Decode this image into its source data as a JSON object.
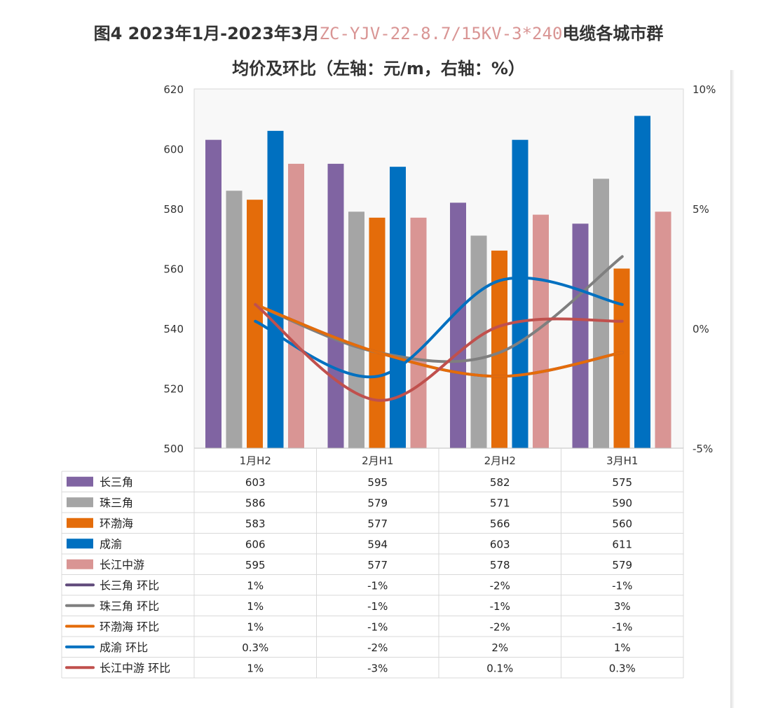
{
  "title": {
    "line1_prefix": "图4 2023年1月-2023年3月",
    "line1_highlight": "ZC-YJV-22-8.7/15KV-3*240",
    "line1_suffix": "电缆各城市群",
    "line2": "均价及环比（左轴：元/m，右轴：%）"
  },
  "chart_data": {
    "type": "bar+line",
    "categories": [
      "1月H2",
      "2月H1",
      "2月H2",
      "3月H1"
    ],
    "left_axis": {
      "range": [
        500,
        620
      ],
      "ticks": [
        "500",
        "520",
        "540",
        "560",
        "580",
        "600",
        "620"
      ]
    },
    "right_axis": {
      "range": [
        -5,
        10
      ],
      "ticks": [
        "-5%",
        "0%",
        "5%",
        "10%"
      ]
    },
    "grid": false,
    "legend": "data-table-below",
    "bar_series": [
      {
        "name": "长三角",
        "color": "#8064a2",
        "values": [
          603,
          595,
          582,
          575
        ],
        "labels": [
          "603",
          "595",
          "582",
          "575"
        ]
      },
      {
        "name": "珠三角",
        "color": "#a5a5a5",
        "values": [
          586,
          579,
          571,
          590
        ],
        "labels": [
          "586",
          "579",
          "571",
          "590"
        ]
      },
      {
        "name": "环渤海",
        "color": "#e46c0a",
        "values": [
          583,
          577,
          566,
          560
        ],
        "labels": [
          "583",
          "577",
          "566",
          "560"
        ]
      },
      {
        "name": "成渝",
        "color": "#0070c0",
        "values": [
          606,
          594,
          603,
          611
        ],
        "labels": [
          "606",
          "594",
          "603",
          "611"
        ]
      },
      {
        "name": "长江中游",
        "color": "#d99594",
        "values": [
          595,
          577,
          578,
          579
        ],
        "labels": [
          "595",
          "577",
          "578",
          "579"
        ]
      }
    ],
    "line_series": [
      {
        "name": "长三角 环比",
        "color": "#604a7b",
        "values": [
          1,
          -1,
          -2,
          -1
        ],
        "labels": [
          "1%",
          "-1%",
          "-2%",
          "-1%"
        ]
      },
      {
        "name": "珠三角 环比",
        "color": "#7f7f7f",
        "values": [
          1,
          -1,
          -1,
          3
        ],
        "labels": [
          "1%",
          "-1%",
          "-1%",
          "3%"
        ]
      },
      {
        "name": "环渤海 环比",
        "color": "#e46c0a",
        "values": [
          1,
          -1,
          -2,
          -1
        ],
        "labels": [
          "1%",
          "-1%",
          "-2%",
          "-1%"
        ]
      },
      {
        "name": "成渝 环比",
        "color": "#0070c0",
        "values": [
          0.3,
          -2,
          2,
          1
        ],
        "labels": [
          "0.3%",
          "-2%",
          "2%",
          "1%"
        ]
      },
      {
        "name": "长江中游 环比",
        "color": "#c0504d",
        "values": [
          1,
          -3,
          0.1,
          0.3
        ],
        "labels": [
          "1%",
          "-3%",
          "0.1%",
          "0.3%"
        ]
      }
    ]
  }
}
